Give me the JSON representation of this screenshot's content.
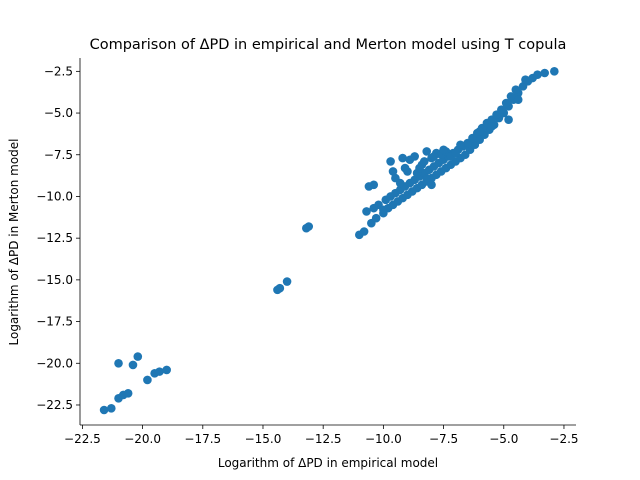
{
  "chart_data": {
    "type": "scatter",
    "title": "Comparison of ΔPD in empirical and Merton model using T copula",
    "xlabel": "Logarithm of ΔPD in empirical model",
    "ylabel": "Logarithm of ΔPD in Merton model",
    "xlim": [
      -22.6,
      -2.0
    ],
    "ylim": [
      -23.7,
      -1.7
    ],
    "xticks": [
      -22.5,
      -20.0,
      -17.5,
      -15.0,
      -12.5,
      -10.0,
      -7.5,
      -5.0,
      -2.5
    ],
    "xtick_labels": [
      "−22.5",
      "−20.0",
      "−17.5",
      "−15.0",
      "−12.5",
      "−10.0",
      "−7.5",
      "−5.0",
      "−2.5"
    ],
    "yticks": [
      -22.5,
      -20.0,
      -17.5,
      -15.0,
      -12.5,
      -10.0,
      -7.5,
      -5.0,
      -2.5
    ],
    "ytick_labels": [
      "−22.5",
      "−20.0",
      "−17.5",
      "−15.0",
      "−12.5",
      "−10.0",
      "−7.5",
      "−5.0",
      "−2.5"
    ],
    "grid": false,
    "color": "#1f77b4",
    "series": [
      {
        "points": [
          [
            -21.6,
            -22.8
          ],
          [
            -21.3,
            -22.7
          ],
          [
            -21.0,
            -22.1
          ],
          [
            -20.8,
            -21.9
          ],
          [
            -20.6,
            -21.8
          ],
          [
            -21.0,
            -20.0
          ],
          [
            -20.4,
            -20.1
          ],
          [
            -20.2,
            -19.6
          ],
          [
            -19.8,
            -21.0
          ],
          [
            -19.5,
            -20.6
          ],
          [
            -19.3,
            -20.5
          ],
          [
            -19.0,
            -20.4
          ],
          [
            -14.4,
            -15.6
          ],
          [
            -14.3,
            -15.5
          ],
          [
            -14.0,
            -15.1
          ],
          [
            -13.2,
            -11.9
          ],
          [
            -13.1,
            -11.8
          ],
          [
            -11.0,
            -12.3
          ],
          [
            -10.8,
            -12.1
          ],
          [
            -10.5,
            -11.6
          ],
          [
            -10.3,
            -11.3
          ],
          [
            -10.0,
            -11.0
          ],
          [
            -9.8,
            -10.7
          ],
          [
            -9.6,
            -10.5
          ],
          [
            -9.4,
            -10.3
          ],
          [
            -9.2,
            -10.1
          ],
          [
            -9.0,
            -9.9
          ],
          [
            -8.8,
            -9.7
          ],
          [
            -8.6,
            -9.5
          ],
          [
            -8.4,
            -9.3
          ],
          [
            -8.2,
            -9.1
          ],
          [
            -8.0,
            -8.9
          ],
          [
            -7.8,
            -8.7
          ],
          [
            -7.6,
            -8.5
          ],
          [
            -7.4,
            -8.3
          ],
          [
            -7.2,
            -8.1
          ],
          [
            -7.0,
            -7.9
          ],
          [
            -6.8,
            -7.7
          ],
          [
            -6.6,
            -7.5
          ],
          [
            -6.4,
            -7.2
          ],
          [
            -6.2,
            -6.9
          ],
          [
            -6.0,
            -6.6
          ],
          [
            -5.8,
            -6.3
          ],
          [
            -5.6,
            -6.0
          ],
          [
            -5.4,
            -5.7
          ],
          [
            -5.2,
            -5.3
          ],
          [
            -5.0,
            -5.0
          ],
          [
            -4.8,
            -4.6
          ],
          [
            -4.6,
            -4.2
          ],
          [
            -4.4,
            -3.8
          ],
          [
            -4.2,
            -3.4
          ],
          [
            -4.0,
            -3.1
          ],
          [
            -3.8,
            -2.9
          ],
          [
            -3.6,
            -2.7
          ],
          [
            -3.3,
            -2.6
          ],
          [
            -2.9,
            -2.5
          ],
          [
            -10.2,
            -10.5
          ],
          [
            -10.0,
            -10.8
          ],
          [
            -9.9,
            -10.2
          ],
          [
            -9.7,
            -10.0
          ],
          [
            -9.5,
            -9.8
          ],
          [
            -9.3,
            -9.6
          ],
          [
            -9.1,
            -9.4
          ],
          [
            -8.9,
            -9.2
          ],
          [
            -8.7,
            -9.0
          ],
          [
            -8.5,
            -8.8
          ],
          [
            -8.3,
            -8.6
          ],
          [
            -8.1,
            -8.4
          ],
          [
            -7.9,
            -8.2
          ],
          [
            -7.7,
            -8.0
          ],
          [
            -7.5,
            -7.8
          ],
          [
            -7.3,
            -7.6
          ],
          [
            -7.1,
            -7.4
          ],
          [
            -6.9,
            -7.2
          ],
          [
            -6.7,
            -7.0
          ],
          [
            -6.5,
            -6.8
          ],
          [
            -6.3,
            -6.5
          ],
          [
            -6.1,
            -6.2
          ],
          [
            -5.9,
            -5.9
          ],
          [
            -5.7,
            -5.6
          ],
          [
            -5.5,
            -5.4
          ],
          [
            -5.3,
            -5.1
          ],
          [
            -5.1,
            -4.8
          ],
          [
            -4.9,
            -4.4
          ],
          [
            -4.7,
            -4.0
          ],
          [
            -4.5,
            -3.6
          ],
          [
            -10.6,
            -9.4
          ],
          [
            -10.4,
            -9.3
          ],
          [
            -9.5,
            -8.9
          ],
          [
            -9.3,
            -9.2
          ],
          [
            -9.0,
            -8.5
          ],
          [
            -9.1,
            -8.3
          ],
          [
            -8.6,
            -8.6
          ],
          [
            -8.4,
            -8.1
          ],
          [
            -8.3,
            -7.9
          ],
          [
            -8.0,
            -7.7
          ],
          [
            -7.8,
            -7.4
          ],
          [
            -7.6,
            -7.5
          ],
          [
            -7.4,
            -7.3
          ],
          [
            -7.2,
            -7.6
          ],
          [
            -7.0,
            -7.4
          ],
          [
            -9.7,
            -7.9
          ],
          [
            -9.6,
            -8.5
          ],
          [
            -9.2,
            -7.7
          ],
          [
            -8.9,
            -7.8
          ],
          [
            -8.7,
            -7.6
          ],
          [
            -8.5,
            -8.3
          ],
          [
            -8.2,
            -8.9
          ],
          [
            -8.0,
            -9.3
          ],
          [
            -7.9,
            -7.6
          ],
          [
            -6.8,
            -6.9
          ],
          [
            -6.0,
            -6.1
          ],
          [
            -5.5,
            -5.8
          ],
          [
            -4.8,
            -5.4
          ],
          [
            -4.4,
            -4.2
          ],
          [
            -4.1,
            -3.0
          ],
          [
            -10.7,
            -10.9
          ],
          [
            -10.4,
            -10.7
          ],
          [
            -8.2,
            -7.3
          ],
          [
            -7.5,
            -7.2
          ]
        ]
      }
    ]
  }
}
